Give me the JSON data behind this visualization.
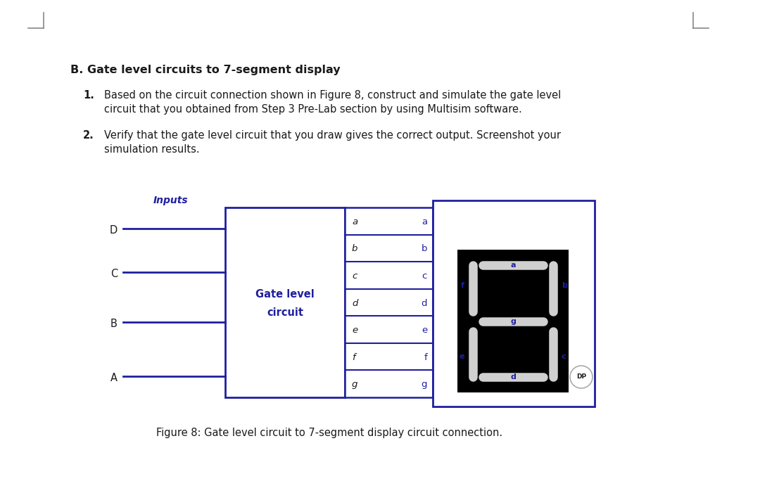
{
  "bg_color": "#ffffff",
  "page_bg": "#ffffff",
  "title_bold": "B. Gate level circuits to 7-segment display",
  "point1_num": "1.",
  "point1": "Based on the circuit connection shown in Figure 8, construct and simulate the gate level\ncircuit that you obtained from Step 3 Pre-Lab section by using Multisim software.",
  "point2_num": "2.",
  "point2": "Verify that the gate level circuit that you draw gives the correct output. Screenshot your\nsimulation results.",
  "inputs_label": "Inputs",
  "blue": "#1f1f9f",
  "dark": "#1a1a1a",
  "box_label_line1": "Gate level",
  "box_label_line2": "circuit",
  "input_pins": [
    "D",
    "C",
    "B",
    "A"
  ],
  "output_pins": [
    "a",
    "b",
    "c",
    "d",
    "e",
    "f",
    "g"
  ],
  "figure_caption": "Figure 8: Gate level circuit to 7-segment display circuit connection.",
  "seg_color": "#d0d0d0"
}
